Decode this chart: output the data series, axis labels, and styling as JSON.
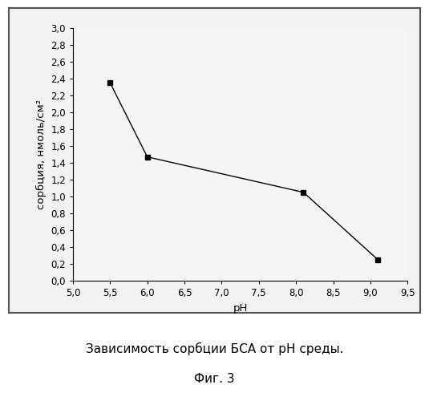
{
  "x": [
    5.5,
    6.0,
    8.1,
    9.1
  ],
  "y": [
    2.35,
    1.47,
    1.05,
    0.25
  ],
  "xlim": [
    5.0,
    9.5
  ],
  "ylim": [
    0.0,
    3.0
  ],
  "xticks": [
    5.0,
    5.5,
    6.0,
    6.5,
    7.0,
    7.5,
    8.0,
    8.5,
    9.0,
    9.5
  ],
  "yticks": [
    0.0,
    0.2,
    0.4,
    0.6,
    0.8,
    1.0,
    1.2,
    1.4,
    1.6,
    1.8,
    2.0,
    2.2,
    2.4,
    2.6,
    2.8,
    3.0
  ],
  "xlabel": "pH",
  "ylabel": "сорбция, нмоль/см²",
  "line_color": "#000000",
  "marker": "s",
  "marker_size": 5,
  "line_width": 1.0,
  "caption_line1": "Зависимость сорбции БСА от pH среды.",
  "caption_line2": "Фиг. 3",
  "background_color": "#f0f0f0",
  "plot_bg_color": "#f5f5f5",
  "outer_bg_color": "#e8e8e8",
  "tick_label_size": 8.5,
  "axis_label_size": 9.5,
  "caption_size": 11,
  "border_color": "#555555"
}
